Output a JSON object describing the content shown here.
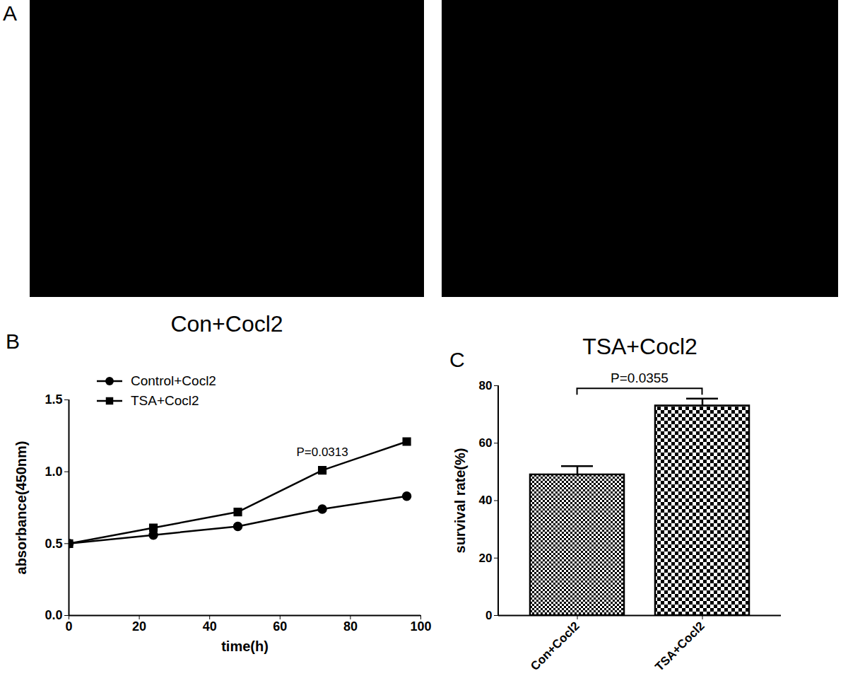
{
  "images": {
    "panel_label": "A",
    "captions": [
      "Con+Cocl2",
      "TSA+Cocl2"
    ]
  },
  "chart_data": [
    {
      "panel_label": "B",
      "type": "line",
      "x_label": "time(h)",
      "y_label": "absorbance(450nm)",
      "x": [
        0,
        24,
        48,
        72,
        96
      ],
      "series": [
        {
          "name": "Control+Cocl2",
          "color": "#000000",
          "marker": "circle",
          "values": [
            0.5,
            0.56,
            0.62,
            0.74,
            0.83
          ]
        },
        {
          "name": "TSA+Cocl2",
          "color": "#000000",
          "marker": "square",
          "values": [
            0.5,
            0.61,
            0.72,
            1.01,
            1.21
          ]
        }
      ],
      "xlim": [
        0,
        100
      ],
      "xticks": [
        0,
        20,
        40,
        60,
        80,
        100
      ],
      "ylim": [
        0,
        1.5
      ],
      "yticks": [
        {
          "value": 0,
          "label": "0.0"
        },
        0.5,
        {
          "value": 1,
          "label": "1.0"
        },
        1.5
      ],
      "annotations": [
        "P=0.0313"
      ],
      "legend": "top-left",
      "grid": false
    },
    {
      "panel_label": "C",
      "type": "bar",
      "y_label": "survival rate(%)",
      "categories": [
        "Con+Cocl2",
        "TSA+Cocl2"
      ],
      "values": [
        49,
        73
      ],
      "errors": [
        3,
        2.5
      ],
      "color": "#000000",
      "ylim": [
        0,
        80
      ],
      "yticks": [
        0,
        20,
        40,
        60,
        80
      ],
      "annotations": [
        "P=0.0355"
      ],
      "grid": false
    }
  ]
}
